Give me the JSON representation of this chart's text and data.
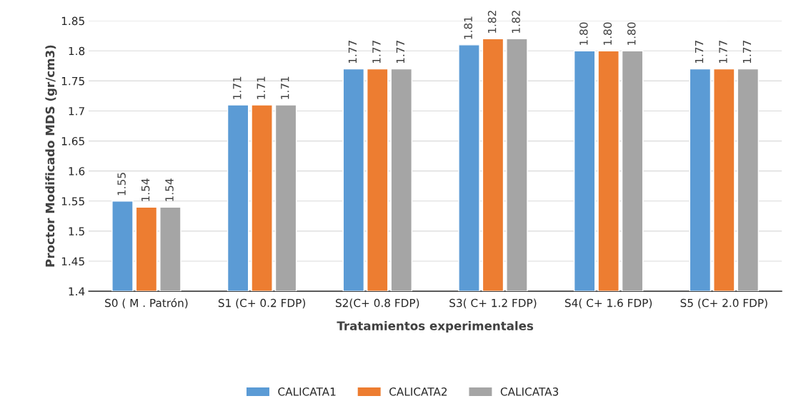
{
  "chart_data": {
    "type": "bar",
    "xlabel": "Tratamientos experimentales",
    "ylabel": "Proctor Modificado MDS (gr/cm3)",
    "categories": [
      "S0 ( M . Patrón)",
      "S1 (C+ 0.2 FDP)",
      "S2(C+ 0.8 FDP)",
      "S3( C+ 1.2 FDP)",
      "S4( C+ 1.6 FDP)",
      "S5 (C+ 2.0 FDP)"
    ],
    "series": [
      {
        "name": "CALICATA1",
        "color": "#5b9bd5",
        "values": [
          1.55,
          1.71,
          1.77,
          1.81,
          1.8,
          1.77
        ],
        "value_labels": [
          "1.55",
          "1.71",
          "1.77",
          "1.81",
          "1.80",
          "1.77"
        ]
      },
      {
        "name": "CALICATA2",
        "color": "#ed7d31",
        "values": [
          1.54,
          1.71,
          1.77,
          1.82,
          1.8,
          1.77
        ],
        "value_labels": [
          "1.54",
          "1.71",
          "1.77",
          "1.82",
          "1.80",
          "1.77"
        ]
      },
      {
        "name": "CALICATA3",
        "color": "#a5a5a5",
        "values": [
          1.54,
          1.71,
          1.77,
          1.82,
          1.8,
          1.77
        ],
        "value_labels": [
          "1.54",
          "1.71",
          "1.77",
          "1.82",
          "1.80",
          "1.77"
        ]
      }
    ],
    "ylim": [
      1.4,
      1.85
    ],
    "yticks": [
      1.4,
      1.45,
      1.5,
      1.55,
      1.6,
      1.65,
      1.7,
      1.75,
      1.8,
      1.85
    ],
    "grid": "y",
    "legend": "bottom"
  }
}
